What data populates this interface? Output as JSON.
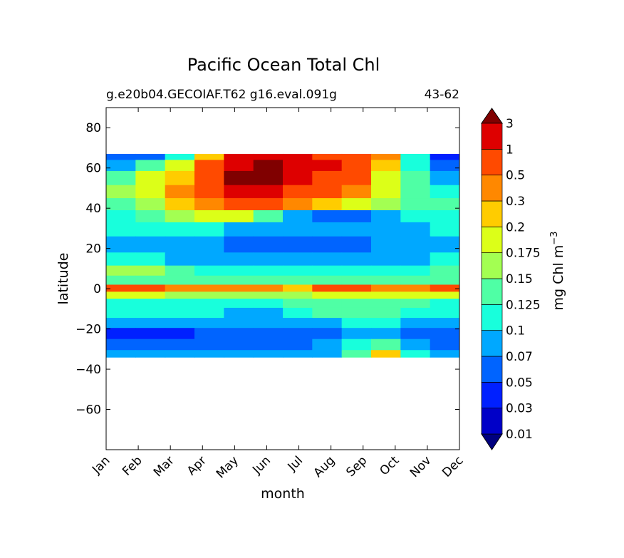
{
  "chart_data": {
    "type": "heatmap",
    "title": "Pacific Ocean Total Chl",
    "subtitle_left": "g.e20b04.GECOIAF.T62 g16.eval.091g",
    "subtitle_right": "43-62",
    "xlabel": "month",
    "ylabel": "latitude",
    "x_categories": [
      "Jan",
      "Feb",
      "Mar",
      "Apr",
      "May",
      "Jun",
      "Jul",
      "Aug",
      "Sep",
      "Oct",
      "Nov",
      "Dec"
    ],
    "ylim": [
      -80,
      90
    ],
    "yticks": [
      -60,
      -40,
      -20,
      0,
      20,
      40,
      60,
      80
    ],
    "data_lat_range": [
      -34,
      67
    ],
    "grid": false,
    "colorbar": {
      "label": "mg Chl m",
      "label_superscript": "−3",
      "levels": [
        "0.01",
        "0.03",
        "0.05",
        "0.07",
        "0.1",
        "0.125",
        "0.15",
        "0.175",
        "0.2",
        "0.3",
        "0.5",
        "1",
        "3"
      ],
      "colors": [
        "#00007f",
        "#0000c8",
        "#0020ff",
        "#0064ff",
        "#00a8ff",
        "#18ffdc",
        "#4fffa5",
        "#a3ff52",
        "#dcff18",
        "#ffcc00",
        "#ff8800",
        "#ff4a00",
        "#de0000",
        "#800000"
      ],
      "extend": "both"
    },
    "regions_note": "values are color class indices (0 = <0.01 ... 13 = >3)",
    "bands": [
      {
        "lat": 66,
        "values": [
          3,
          3,
          5,
          9,
          12,
          12,
          12,
          11,
          11,
          10,
          5,
          2
        ]
      },
      {
        "lat": 62,
        "values": [
          4,
          6,
          8,
          11,
          12,
          13,
          12,
          12,
          11,
          9,
          5,
          3
        ]
      },
      {
        "lat": 55,
        "values": [
          6,
          8,
          9,
          11,
          13,
          13,
          12,
          11,
          11,
          8,
          6,
          4
        ]
      },
      {
        "lat": 48,
        "values": [
          7,
          8,
          10,
          11,
          12,
          12,
          11,
          11,
          10,
          8,
          6,
          5
        ]
      },
      {
        "lat": 42,
        "values": [
          6,
          7,
          9,
          10,
          11,
          11,
          10,
          9,
          8,
          7,
          6,
          6
        ]
      },
      {
        "lat": 36,
        "values": [
          5,
          6,
          7,
          8,
          8,
          6,
          4,
          3,
          3,
          4,
          5,
          5
        ]
      },
      {
        "lat": 30,
        "values": [
          5,
          5,
          5,
          5,
          4,
          4,
          4,
          4,
          4,
          4,
          4,
          5
        ]
      },
      {
        "lat": 22,
        "values": [
          4,
          4,
          4,
          4,
          3,
          3,
          3,
          3,
          3,
          4,
          4,
          4
        ]
      },
      {
        "lat": 14,
        "values": [
          5,
          5,
          4,
          4,
          4,
          4,
          4,
          4,
          4,
          4,
          4,
          5
        ]
      },
      {
        "lat": 9,
        "values": [
          7,
          7,
          6,
          5,
          5,
          5,
          5,
          5,
          5,
          5,
          5,
          6
        ]
      },
      {
        "lat": 4,
        "values": [
          6,
          6,
          6,
          6,
          6,
          6,
          6,
          6,
          6,
          6,
          6,
          6
        ]
      },
      {
        "lat": 0,
        "values": [
          11,
          11,
          10,
          10,
          10,
          10,
          9,
          11,
          11,
          10,
          10,
          11
        ]
      },
      {
        "lat": -3,
        "values": [
          8,
          8,
          7,
          7,
          7,
          7,
          7,
          8,
          8,
          8,
          8,
          8
        ]
      },
      {
        "lat": -7,
        "values": [
          5,
          5,
          5,
          5,
          5,
          5,
          6,
          6,
          6,
          6,
          6,
          5
        ]
      },
      {
        "lat": -12,
        "values": [
          5,
          5,
          5,
          5,
          4,
          4,
          5,
          6,
          6,
          6,
          5,
          5
        ]
      },
      {
        "lat": -17,
        "values": [
          4,
          4,
          4,
          4,
          4,
          4,
          4,
          4,
          5,
          5,
          4,
          4
        ]
      },
      {
        "lat": -22,
        "values": [
          2,
          2,
          2,
          3,
          3,
          3,
          3,
          3,
          4,
          4,
          3,
          3
        ]
      },
      {
        "lat": -28,
        "values": [
          3,
          3,
          3,
          3,
          3,
          3,
          3,
          4,
          5,
          6,
          4,
          3
        ]
      },
      {
        "lat": -33,
        "values": [
          4,
          4,
          4,
          4,
          4,
          4,
          4,
          4,
          6,
          9,
          5,
          4
        ]
      }
    ]
  }
}
